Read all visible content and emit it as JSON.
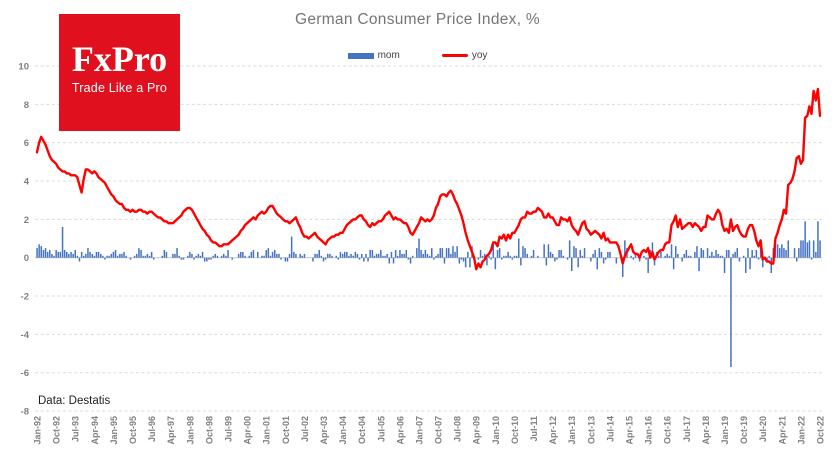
{
  "meta": {
    "source_note": "Data: Destatis"
  },
  "logo": {
    "brand": "FxPro",
    "tagline": "Trade Like a Pro",
    "bg_color": "#E0101E",
    "text_color": "#FFFFFF"
  },
  "legend": [
    {
      "label": "mom",
      "color": "#4472C4",
      "type": "bar"
    },
    {
      "label": "yoy",
      "color": "#FF0000",
      "type": "line"
    }
  ],
  "colors": {
    "title_text": "#757575",
    "tick_text": "#7F7F7F",
    "gridline": "#DADADA",
    "zero_line": "#C6C6C6",
    "background": "#FFFFFF"
  },
  "chart_data": {
    "type": "combo-bar-line",
    "title": "German Consumer Price Index, %",
    "xlabel": "",
    "ylabel": "",
    "x_start": "Jan-1992",
    "x_end": "Oct-2022",
    "x_frequency": "monthly",
    "x_tick_every": 9,
    "x_tick_labels": [
      "Jan-92",
      "Oct-92",
      "Jul-93",
      "Apr-94",
      "Jan-95",
      "Oct-95",
      "Jul-96",
      "Apr-97",
      "Jan-98",
      "Oct-98",
      "Jul-99",
      "Apr-00",
      "Jan-01",
      "Oct-01",
      "Jul-02",
      "Apr-03",
      "Jan-04",
      "Oct-04",
      "Jul-05",
      "Apr-06",
      "Jan-07",
      "Oct-07",
      "Jul-08",
      "Apr-09",
      "Jan-10",
      "Oct-10",
      "Jul-11",
      "Apr-12",
      "Jan-13",
      "Oct-13",
      "Jul-14",
      "Apr-15",
      "Jan-16",
      "Oct-16",
      "Jul-17",
      "Apr-18",
      "Jan-19",
      "Oct-19",
      "Jul-20",
      "Apr-21",
      "Jan-22",
      "Oct-22"
    ],
    "y_ticks": [
      10,
      8,
      6,
      4,
      2,
      0,
      -2,
      -4,
      -6,
      -8
    ],
    "ylim": [
      -8,
      10
    ],
    "grid": "horizontal-dashed",
    "legend_position": "top",
    "series": [
      {
        "name": "mom",
        "type": "bar",
        "color": "#4472C4",
        "values": [
          0.5,
          0.7,
          0.6,
          0.4,
          0.5,
          0.3,
          0.4,
          0.2,
          0.1,
          0.4,
          0.3,
          0.3,
          1.6,
          0.4,
          0.3,
          0.2,
          0.3,
          0.2,
          0.4,
          0.1,
          -0.2,
          0.3,
          0.1,
          0.2,
          0.5,
          0.3,
          0.2,
          0.1,
          0.3,
          0.3,
          0.2,
          0.1,
          -0.1,
          0.1,
          0.1,
          0.2,
          0.3,
          0.4,
          0.1,
          0.2,
          0.2,
          0.3,
          0.1,
          0.0,
          -0.1,
          0.0,
          0.1,
          0.2,
          0.5,
          0.4,
          0.1,
          0.1,
          0.2,
          0.1,
          0.3,
          -0.1,
          0.0,
          0.0,
          0.0,
          0.1,
          0.4,
          0.3,
          0.0,
          0.0,
          0.2,
          0.2,
          0.5,
          0.1,
          -0.1,
          -0.1,
          0.0,
          0.1,
          0.3,
          0.2,
          -0.1,
          0.1,
          0.2,
          0.1,
          0.3,
          -0.2,
          -0.2,
          -0.1,
          -0.1,
          0.1,
          0.2,
          0.1,
          0.0,
          0.1,
          0.2,
          0.1,
          0.4,
          0.0,
          -0.1,
          0.0,
          0.0,
          0.2,
          0.3,
          0.3,
          0.1,
          0.0,
          0.1,
          0.3,
          0.4,
          0.0,
          0.3,
          0.0,
          0.1,
          0.1,
          0.4,
          0.5,
          0.1,
          0.3,
          0.4,
          0.2,
          0.2,
          -0.1,
          0.0,
          -0.2,
          -0.2,
          0.2,
          1.1,
          0.3,
          0.2,
          0.0,
          0.2,
          0.1,
          0.2,
          0.0,
          0.0,
          0.0,
          -0.2,
          0.2,
          0.2,
          0.4,
          0.1,
          -0.2,
          -0.1,
          0.2,
          0.2,
          0.1,
          0.0,
          0.1,
          -0.1,
          0.3,
          0.2,
          0.3,
          0.3,
          0.1,
          0.2,
          0.1,
          0.3,
          0.2,
          -0.1,
          0.2,
          -0.2,
          0.2,
          -0.2,
          0.4,
          0.4,
          0.1,
          0.2,
          0.2,
          0.4,
          0.1,
          0.1,
          0.2,
          -0.3,
          0.3,
          -0.3,
          0.4,
          0.1,
          0.4,
          0.2,
          0.2,
          0.4,
          -0.1,
          -0.3,
          0.1,
          0.0,
          0.5,
          1.0,
          0.4,
          0.2,
          0.4,
          0.2,
          0.1,
          0.5,
          -0.1,
          0.1,
          0.2,
          0.5,
          0.5,
          -0.3,
          0.5,
          0.5,
          0.2,
          0.6,
          0.3,
          0.6,
          -0.3,
          -0.1,
          -0.2,
          -0.5,
          0.3,
          -0.5,
          0.6,
          -0.1,
          0.0,
          -0.1,
          0.4,
          0.1,
          0.2,
          -0.4,
          0.1,
          -0.1,
          0.8,
          -0.6,
          0.4,
          0.5,
          -0.1,
          0.1,
          0.1,
          0.3,
          0.1,
          -0.1,
          0.1,
          0.1,
          1.0,
          -0.4,
          0.6,
          0.5,
          0.2,
          0.0,
          0.1,
          0.4,
          0.0,
          0.1,
          0.0,
          0.0,
          0.7,
          -0.4,
          0.7,
          0.3,
          0.2,
          -0.2,
          -0.1,
          0.4,
          0.4,
          0.1,
          0.0,
          -0.1,
          0.9,
          -0.7,
          0.6,
          0.5,
          -0.5,
          0.4,
          0.1,
          0.5,
          0.0,
          0.0,
          -0.2,
          0.2,
          0.4,
          -0.6,
          0.5,
          0.3,
          -0.3,
          -0.1,
          0.3,
          0.3,
          0.0,
          0.0,
          -0.3,
          0.0,
          0.0,
          -1.0,
          0.9,
          0.5,
          0.0,
          0.1,
          -0.1,
          0.2,
          0.0,
          -0.2,
          0.0,
          0.1,
          -0.1,
          -0.8,
          0.4,
          0.8,
          -0.4,
          0.3,
          0.1,
          0.3,
          0.0,
          0.1,
          0.2,
          0.1,
          0.7,
          -0.6,
          0.6,
          0.2,
          0.0,
          -0.2,
          0.2,
          0.4,
          0.1,
          0.1,
          0.0,
          0.3,
          0.6,
          -0.7,
          0.5,
          0.4,
          0.0,
          0.5,
          0.1,
          0.3,
          0.1,
          0.4,
          0.2,
          0.1,
          0.1,
          -0.8,
          0.4,
          0.4,
          -5.7,
          0.2,
          0.3,
          0.5,
          -0.2,
          0.0,
          0.1,
          -0.8,
          0.5,
          -0.6,
          0.4,
          0.1,
          0.4,
          -0.1,
          0.6,
          -0.5,
          -0.1,
          -0.2,
          0.1,
          -0.8,
          0.5,
          0.8,
          0.7,
          0.5,
          0.7,
          0.5,
          0.4,
          0.9,
          0.0,
          0.0,
          0.5,
          -0.2,
          0.5,
          0.9,
          0.9,
          1.9,
          0.8,
          0.9,
          -0.1,
          0.9,
          0.3,
          1.9,
          0.9
        ]
      },
      {
        "name": "yoy",
        "type": "line",
        "color": "#FF0000",
        "values": [
          5.5,
          6.0,
          6.3,
          6.1,
          5.9,
          5.6,
          5.3,
          5.1,
          5.0,
          4.9,
          4.7,
          4.6,
          4.5,
          4.5,
          4.4,
          4.4,
          4.3,
          4.3,
          4.3,
          4.2,
          3.8,
          3.4,
          4.1,
          4.6,
          4.6,
          4.5,
          4.4,
          4.5,
          4.4,
          4.2,
          4.1,
          4.0,
          3.9,
          3.7,
          3.5,
          3.3,
          3.2,
          3.0,
          2.9,
          2.8,
          2.8,
          2.6,
          2.5,
          2.5,
          2.4,
          2.5,
          2.4,
          2.4,
          2.5,
          2.5,
          2.4,
          2.4,
          2.3,
          2.4,
          2.4,
          2.3,
          2.2,
          2.1,
          2.1,
          2.0,
          1.9,
          1.9,
          1.8,
          1.8,
          1.8,
          1.9,
          2.0,
          2.1,
          2.2,
          2.4,
          2.5,
          2.6,
          2.6,
          2.5,
          2.3,
          2.1,
          1.9,
          1.7,
          1.5,
          1.4,
          1.2,
          1.1,
          0.9,
          0.8,
          0.8,
          0.7,
          0.6,
          0.6,
          0.7,
          0.7,
          0.7,
          0.8,
          0.9,
          1.0,
          1.1,
          1.2,
          1.4,
          1.5,
          1.7,
          1.8,
          1.9,
          2.0,
          2.1,
          2.0,
          2.2,
          2.3,
          2.4,
          2.3,
          2.4,
          2.6,
          2.7,
          2.7,
          2.5,
          2.3,
          2.2,
          2.1,
          2.0,
          1.9,
          1.9,
          1.8,
          1.9,
          2.0,
          2.1,
          1.8,
          1.6,
          1.3,
          1.1,
          1.1,
          1.0,
          1.1,
          1.2,
          1.3,
          1.1,
          1.0,
          0.9,
          0.8,
          0.7,
          0.9,
          1.0,
          1.1,
          1.1,
          1.2,
          1.2,
          1.3,
          1.3,
          1.5,
          1.7,
          1.8,
          1.9,
          2.0,
          2.0,
          2.1,
          2.2,
          2.2,
          2.0,
          1.9,
          1.7,
          1.6,
          1.8,
          1.7,
          1.8,
          1.9,
          1.9,
          2.0,
          2.2,
          2.3,
          2.4,
          2.2,
          2.0,
          2.1,
          2.0,
          2.0,
          1.9,
          1.8,
          1.8,
          1.6,
          1.3,
          1.2,
          1.4,
          1.6,
          1.8,
          2.1,
          2.0,
          1.9,
          2.0,
          1.9,
          2.0,
          2.2,
          2.6,
          2.8,
          3.2,
          3.3,
          3.3,
          3.2,
          3.4,
          3.5,
          3.3,
          3.0,
          2.8,
          2.5,
          2.2,
          1.8,
          1.3,
          0.9,
          0.6,
          0.3,
          0.0,
          -0.6,
          -0.3,
          -0.5,
          -0.2,
          -0.1,
          0.1,
          0.2,
          0.4,
          0.8,
          0.8,
          0.6,
          1.1,
          1.0,
          1.2,
          0.9,
          1.2,
          1.0,
          1.3,
          1.3,
          1.5,
          1.7,
          2.0,
          2.1,
          2.1,
          2.4,
          2.3,
          2.3,
          2.4,
          2.4,
          2.6,
          2.5,
          2.4,
          2.1,
          2.1,
          2.3,
          2.1,
          2.1,
          1.9,
          1.7,
          1.7,
          2.1,
          2.0,
          2.0,
          1.9,
          2.1,
          1.7,
          1.5,
          1.4,
          1.2,
          1.5,
          1.8,
          1.9,
          1.5,
          1.4,
          1.2,
          1.3,
          1.4,
          1.3,
          1.2,
          1.0,
          1.3,
          0.9,
          1.0,
          0.8,
          0.8,
          0.8,
          0.8,
          0.6,
          0.2,
          -0.3,
          0.1,
          0.3,
          0.5,
          0.7,
          0.3,
          0.2,
          0.2,
          0.0,
          0.3,
          0.4,
          0.3,
          0.5,
          0.0,
          0.3,
          -0.1,
          0.1,
          0.3,
          0.4,
          0.4,
          0.7,
          0.8,
          0.8,
          1.7,
          1.9,
          2.2,
          1.6,
          2.0,
          1.5,
          1.6,
          1.7,
          1.8,
          1.8,
          1.6,
          1.8,
          1.7,
          1.6,
          1.4,
          1.6,
          1.6,
          2.2,
          2.1,
          2.0,
          2.0,
          2.3,
          2.5,
          2.3,
          1.7,
          1.4,
          1.5,
          1.3,
          2.0,
          1.4,
          1.6,
          1.7,
          1.4,
          1.2,
          1.1,
          1.1,
          1.5,
          1.7,
          1.7,
          1.4,
          0.9,
          0.6,
          0.9,
          -0.1,
          0.0,
          -0.2,
          -0.2,
          -0.3,
          -0.3,
          1.0,
          1.3,
          1.7,
          2.0,
          2.5,
          2.3,
          3.8,
          3.9,
          4.1,
          4.5,
          5.2,
          5.3,
          4.9,
          5.1,
          7.3,
          7.4,
          7.9,
          7.5,
          8.7,
          8.2,
          8.8,
          7.4
        ]
      }
    ]
  }
}
